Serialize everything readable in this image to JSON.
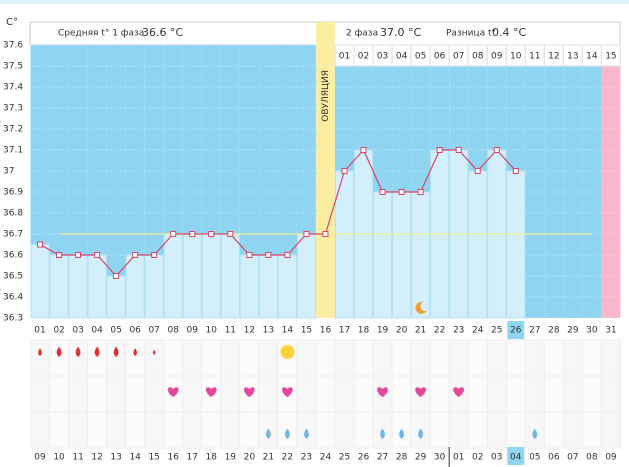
{
  "header": {
    "phase1_label": "Средняя t° 1 фаза",
    "phase1_value": "36.6 °C",
    "phase2_label": "2 фаза",
    "phase2_value": "37.0 °C",
    "diff_label": "Разница t°",
    "diff_value": "0.4 °C"
  },
  "chart_data": {
    "type": "line",
    "ylabel": "C°",
    "color": "#d9446a",
    "categories": [
      "01",
      "02",
      "03",
      "04",
      "05",
      "06",
      "07",
      "08",
      "09",
      "10",
      "11",
      "12",
      "13",
      "14",
      "15",
      "16",
      "17",
      "18",
      "19",
      "20",
      "21",
      "22",
      "23",
      "24",
      "25",
      "26",
      "27",
      "28",
      "29",
      "30",
      "31"
    ],
    "values": [
      36.65,
      36.6,
      36.6,
      36.6,
      36.5,
      36.6,
      36.6,
      36.7,
      36.7,
      36.7,
      36.7,
      36.6,
      36.6,
      36.6,
      36.7,
      36.7,
      37.0,
      37.1,
      36.9,
      36.9,
      36.9,
      37.1,
      37.1,
      37.0,
      37.1,
      37.0,
      null,
      null,
      null,
      null,
      null
    ],
    "ylim": [
      36.3,
      37.6
    ],
    "yticks": [
      36.3,
      36.4,
      36.5,
      36.6,
      36.7,
      36.8,
      36.9,
      37.0,
      37.1,
      37.2,
      37.3,
      37.4,
      37.5,
      37.6
    ],
    "coverline": 36.7,
    "ovulation_day": 16,
    "ovulation_label": "ОВУЛЯЦИЯ",
    "pink_day": 31,
    "today_day": 26,
    "moon_day": 21,
    "phase2_start_day": 17,
    "phase2_labels": [
      "01",
      "02",
      "03",
      "04",
      "05",
      "06",
      "07",
      "08",
      "09",
      "10",
      "11",
      "12",
      "13",
      "14",
      "15"
    ]
  },
  "events": {
    "bleeding": [
      {
        "day": 1,
        "size": 3
      },
      {
        "day": 2,
        "size": 4
      },
      {
        "day": 3,
        "size": 4
      },
      {
        "day": 4,
        "size": 4
      },
      {
        "day": 5,
        "size": 4
      },
      {
        "day": 6,
        "size": 3
      },
      {
        "day": 7,
        "size": 2
      }
    ],
    "sun_day": 14,
    "hearts": [
      8,
      10,
      12,
      14,
      19,
      21,
      23
    ],
    "blue_drops": [
      13,
      14,
      15,
      19,
      20,
      21,
      27
    ]
  },
  "dates": [
    {
      "label": "09"
    },
    {
      "label": "10"
    },
    {
      "label": "11"
    },
    {
      "label": "12"
    },
    {
      "label": "13"
    },
    {
      "label": "14"
    },
    {
      "label": "15",
      "color": "#d9304a"
    },
    {
      "label": "16",
      "color": "#d9304a"
    },
    {
      "label": "17"
    },
    {
      "label": "18"
    },
    {
      "label": "19"
    },
    {
      "label": "20"
    },
    {
      "label": "21"
    },
    {
      "label": "22",
      "color": "#d9304a"
    },
    {
      "label": "23",
      "color": "#d9304a"
    },
    {
      "label": "24"
    },
    {
      "label": "25"
    },
    {
      "label": "26"
    },
    {
      "label": "27"
    },
    {
      "label": "28"
    },
    {
      "label": "29",
      "color": "#d9304a"
    },
    {
      "label": "30",
      "color": "#d9304a"
    },
    {
      "label": "01"
    },
    {
      "label": "02"
    },
    {
      "label": "03"
    },
    {
      "label": "04"
    },
    {
      "label": "05"
    },
    {
      "label": "06",
      "color": "#d9304a"
    },
    {
      "label": "07",
      "color": "#d9304a"
    },
    {
      "label": "08"
    },
    {
      "label": "09"
    }
  ]
}
